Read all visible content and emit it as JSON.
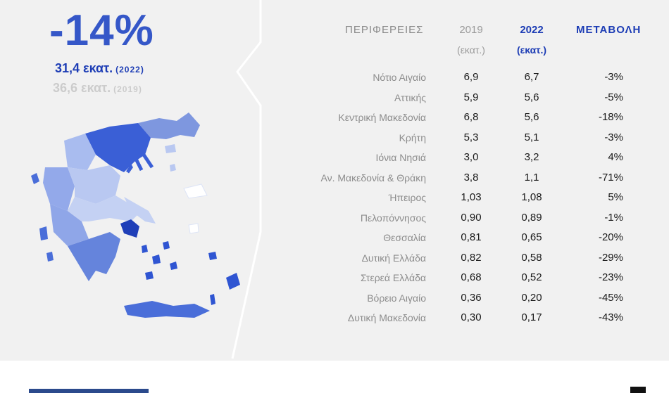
{
  "summary": {
    "change_pct": "-14%",
    "value_2022": "31,4 εκατ.",
    "year_2022": "(2022)",
    "value_2019": "36,6 εκατ.",
    "year_2019": "(2019)"
  },
  "colors": {
    "accent": "#1d3db5",
    "headline": "#3557c8",
    "muted": "#cccccc",
    "background": "#f1f1f1"
  },
  "table": {
    "headers": {
      "region": "ΠΕΡΙΦΕΡΕΙΕΣ",
      "y2019": "2019",
      "y2019_unit": "(εκατ.)",
      "y2022": "2022",
      "y2022_unit": "(εκατ.)",
      "change": "ΜΕΤΑΒΟΛΗ"
    },
    "rows": [
      {
        "region": "Νότιο Αιγαίο",
        "v2019": "6,9",
        "v2022": "6,7",
        "change": "-3%"
      },
      {
        "region": "Αττικής",
        "v2019": "5,9",
        "v2022": "5,6",
        "change": "-5%"
      },
      {
        "region": "Κεντρική Μακεδονία",
        "v2019": "6,8",
        "v2022": "5,6",
        "change": "-18%"
      },
      {
        "region": "Κρήτη",
        "v2019": "5,3",
        "v2022": "5,1",
        "change": "-3%"
      },
      {
        "region": "Ιόνια Νησιά",
        "v2019": "3,0",
        "v2022": "3,2",
        "change": "4%"
      },
      {
        "region": "Αν. Μακεδονία & Θράκη",
        "v2019": "3,8",
        "v2022": "1,1",
        "change": "-71%"
      },
      {
        "region": "Ήπειρος",
        "v2019": "1,03",
        "v2022": "1,08",
        "change": "5%"
      },
      {
        "region": "Πελοπόννησος",
        "v2019": "0,90",
        "v2022": "0,89",
        "change": "-1%"
      },
      {
        "region": "Θεσσαλία",
        "v2019": "0,81",
        "v2022": "0,65",
        "change": "-20%"
      },
      {
        "region": "Δυτική Ελλάδα",
        "v2019": "0,82",
        "v2022": "0,58",
        "change": "-29%"
      },
      {
        "region": "Στερεά Ελλάδα",
        "v2019": "0,68",
        "v2022": "0,52",
        "change": "-23%"
      },
      {
        "region": "Βόρειο Αιγαίο",
        "v2019": "0,36",
        "v2022": "0,20",
        "change": "-45%"
      },
      {
        "region": "Δυτική Μακεδονία",
        "v2019": "0,30",
        "v2022": "0,17",
        "change": "-43%"
      }
    ]
  },
  "chart_data": {
    "type": "table",
    "columns": [
      "ΠΕΡΙΦΕΡΕΙΕΣ",
      "2019 (εκατ.)",
      "2022 (εκατ.)",
      "ΜΕΤΑΒΟΛΗ"
    ],
    "categories": [
      "Νότιο Αιγαίο",
      "Αττικής",
      "Κεντρική Μακεδονία",
      "Κρήτη",
      "Ιόνια Νησιά",
      "Αν. Μακεδονία & Θράκη",
      "Ήπειρος",
      "Πελοπόννησος",
      "Θεσσαλία",
      "Δυτική Ελλάδα",
      "Στερεά Ελλάδα",
      "Βόρειο Αιγαίο",
      "Δυτική Μακεδονία"
    ],
    "series": [
      {
        "name": "2019",
        "values": [
          6.9,
          5.9,
          6.8,
          5.3,
          3.0,
          3.8,
          1.03,
          0.9,
          0.81,
          0.82,
          0.68,
          0.36,
          0.3
        ]
      },
      {
        "name": "2022",
        "values": [
          6.7,
          5.6,
          5.6,
          5.1,
          3.2,
          1.1,
          1.08,
          0.89,
          0.65,
          0.58,
          0.52,
          0.2,
          0.17
        ]
      },
      {
        "name": "ΜΕΤΑΒΟΛΗ",
        "values": [
          -3,
          -5,
          -18,
          -3,
          4,
          -71,
          5,
          -1,
          -20,
          -29,
          -23,
          -45,
          -43
        ]
      }
    ]
  }
}
